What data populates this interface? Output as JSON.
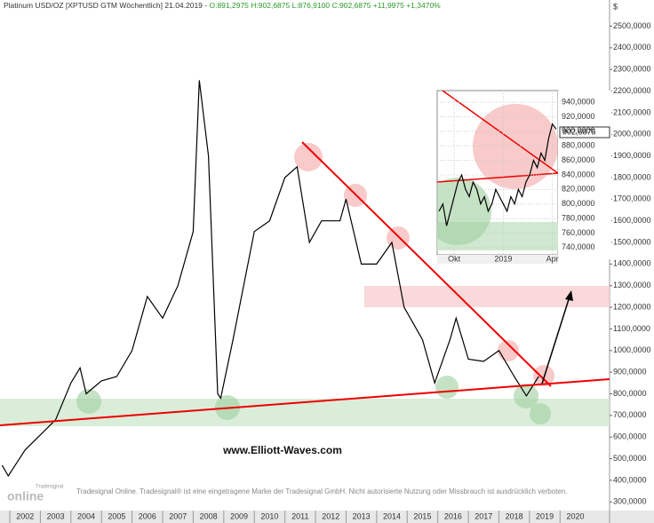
{
  "chart_data": [
    {
      "type": "line",
      "title": "Platinum USD/OZ [XPTUSD GTM  Wöchentlich] 21.04.2019 -",
      "subtitle": "O:891,2975 H:902,6875 L:876,9100 C:902,6875 +11,9975 +1,3470%",
      "y_axis_label": "$",
      "color": "#000000",
      "x": [
        2001.75,
        2001.95,
        2002.5,
        2003.0,
        2003.5,
        2004.0,
        2004.3,
        2004.5,
        2005.0,
        2005.5,
        2006.0,
        2006.5,
        2007.0,
        2007.5,
        2008.0,
        2008.2,
        2008.5,
        2008.8,
        2008.9,
        2009.3,
        2010.0,
        2010.5,
        2011.0,
        2011.4,
        2011.8,
        2012.2,
        2012.8,
        2013.0,
        2013.5,
        2014.0,
        2014.5,
        2014.9,
        2015.5,
        2015.9,
        2016.4,
        2016.6,
        2017.0,
        2017.5,
        2018.0,
        2018.5,
        2018.9,
        2019.3
      ],
      "values": [
        470,
        420,
        540,
        610,
        680,
        850,
        920,
        800,
        860,
        880,
        1000,
        1250,
        1150,
        1300,
        1550,
        2250,
        1900,
        800,
        780,
        1050,
        1550,
        1600,
        1800,
        1850,
        1500,
        1600,
        1600,
        1700,
        1400,
        1400,
        1500,
        1200,
        1050,
        850,
        1050,
        1150,
        960,
        950,
        1000,
        880,
        790,
        880
      ],
      "xlim": [
        2001.68,
        2021.62
      ],
      "xticks": [
        2002,
        2003,
        2004,
        2005,
        2006,
        2007,
        2008,
        2009,
        2010,
        2011,
        2012,
        2013,
        2014,
        2015,
        2016,
        2017,
        2018,
        2019,
        2020
      ],
      "ylim": [
        260,
        2580
      ],
      "yticks": [
        {
          "value": 300,
          "label": "300,0000"
        },
        {
          "value": 400,
          "label": "400,0000"
        },
        {
          "value": 500,
          "label": "500,0000"
        },
        {
          "value": 600,
          "label": "600,0000"
        },
        {
          "value": 700,
          "label": "700,0000"
        },
        {
          "value": 800,
          "label": "800,0000"
        },
        {
          "value": 900,
          "label": "900,0000"
        },
        {
          "value": 1000,
          "label": "1000,0000"
        },
        {
          "value": 1100,
          "label": "1100,0000"
        },
        {
          "value": 1200,
          "label": "1200,0000"
        },
        {
          "value": 1300,
          "label": "1300,0000"
        },
        {
          "value": 1400,
          "label": "1400,0000"
        },
        {
          "value": 1500,
          "label": "1500,0000"
        },
        {
          "value": 1600,
          "label": "1600,0000"
        },
        {
          "value": 1700,
          "label": "1700,0000"
        },
        {
          "value": 1800,
          "label": "1800,0000"
        },
        {
          "value": 1900,
          "label": "1900,0000"
        },
        {
          "value": 2000,
          "label": "2000,0000"
        },
        {
          "value": 2100,
          "label": "2100,0000"
        },
        {
          "value": 2200,
          "label": "2200,0000"
        },
        {
          "value": 2300,
          "label": "2300,0000"
        },
        {
          "value": 2400,
          "label": "2400,0000"
        },
        {
          "value": 2500,
          "label": "2500,0000"
        }
      ],
      "watermark": "www.Elliott-Waves.com",
      "footer": "Tradesignal Online. Tradesignal® ist eine eingetragene Marke der Tradesignal GmbH. Nicht autorisierte Nutzung oder Missbrauch ist ausdrücklich verboten.",
      "logo_top": "Tradesignal",
      "logo_bottom": "online"
    },
    {
      "type": "line",
      "color": "#000000",
      "categories": [
        null,
        null,
        null,
        null,
        "Okt",
        null,
        null,
        null,
        null,
        null,
        null,
        null,
        null,
        null,
        null,
        null,
        null,
        "2019",
        null,
        null,
        null,
        null,
        null,
        null,
        null,
        null,
        null,
        null,
        null,
        null,
        "Apr",
        null
      ],
      "values": [
        790,
        800,
        770,
        790,
        810,
        830,
        840,
        820,
        810,
        830,
        820,
        800,
        810,
        790,
        800,
        820,
        810,
        800,
        790,
        810,
        800,
        820,
        810,
        830,
        840,
        860,
        850,
        870,
        860,
        890,
        910,
        903
      ],
      "last_price_label": "902,6875",
      "ylim": [
        730,
        956
      ],
      "yticks": [
        {
          "value": 740,
          "label": "740,0000"
        },
        {
          "value": 760,
          "label": "760,0000"
        },
        {
          "value": 780,
          "label": "780,0000"
        },
        {
          "value": 800,
          "label": "800,0000"
        },
        {
          "value": 820,
          "label": "820,0000"
        },
        {
          "value": 840,
          "label": "840,0000"
        },
        {
          "value": 860,
          "label": "860,0000"
        },
        {
          "value": 880,
          "label": "880,0000"
        },
        {
          "value": 900,
          "label": "900,0000"
        },
        {
          "value": 920,
          "label": "920,0000"
        },
        {
          "value": 940,
          "label": "940,0000"
        }
      ]
    }
  ]
}
